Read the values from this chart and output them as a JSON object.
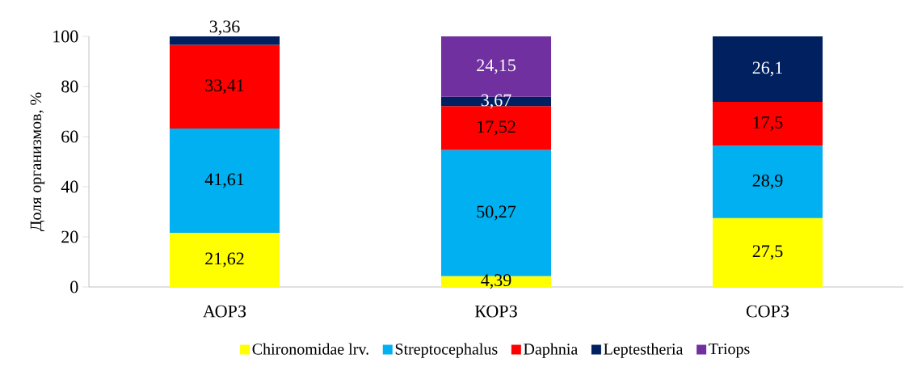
{
  "chart_data": {
    "type": "bar",
    "stacked": true,
    "ylabel": "Доля организмов, %",
    "categories": [
      "АОРЗ",
      "КОРЗ",
      "СОРЗ"
    ],
    "ylim": [
      0,
      100
    ],
    "yticks": [
      0,
      20,
      40,
      60,
      80,
      100
    ],
    "legend": "bottom",
    "series": [
      {
        "name": "Chironomidae lrv.",
        "color": "#ffff00",
        "values": [
          21.62,
          4.39,
          27.5
        ],
        "value_labels": [
          "21,62",
          "4,39",
          "27,5"
        ]
      },
      {
        "name": "Streptocephalus",
        "color": "#00b0f0",
        "values": [
          41.61,
          50.27,
          28.9
        ],
        "value_labels": [
          "41,61",
          "50,27",
          "28,9"
        ]
      },
      {
        "name": "Daphnia",
        "color": "#ff0000",
        "values": [
          33.41,
          17.52,
          17.5
        ],
        "value_labels": [
          "33,41",
          "17,52",
          "17,5"
        ]
      },
      {
        "name": "Leptestheria",
        "color": "#002060",
        "values": [
          3.36,
          3.67,
          26.1
        ],
        "value_labels": [
          "3,36",
          "3,67",
          "26,1"
        ]
      },
      {
        "name": "Triops",
        "color": "#7030a0",
        "values": [
          null,
          24.15,
          null
        ],
        "value_labels": [
          null,
          "24,15",
          null
        ]
      }
    ]
  }
}
